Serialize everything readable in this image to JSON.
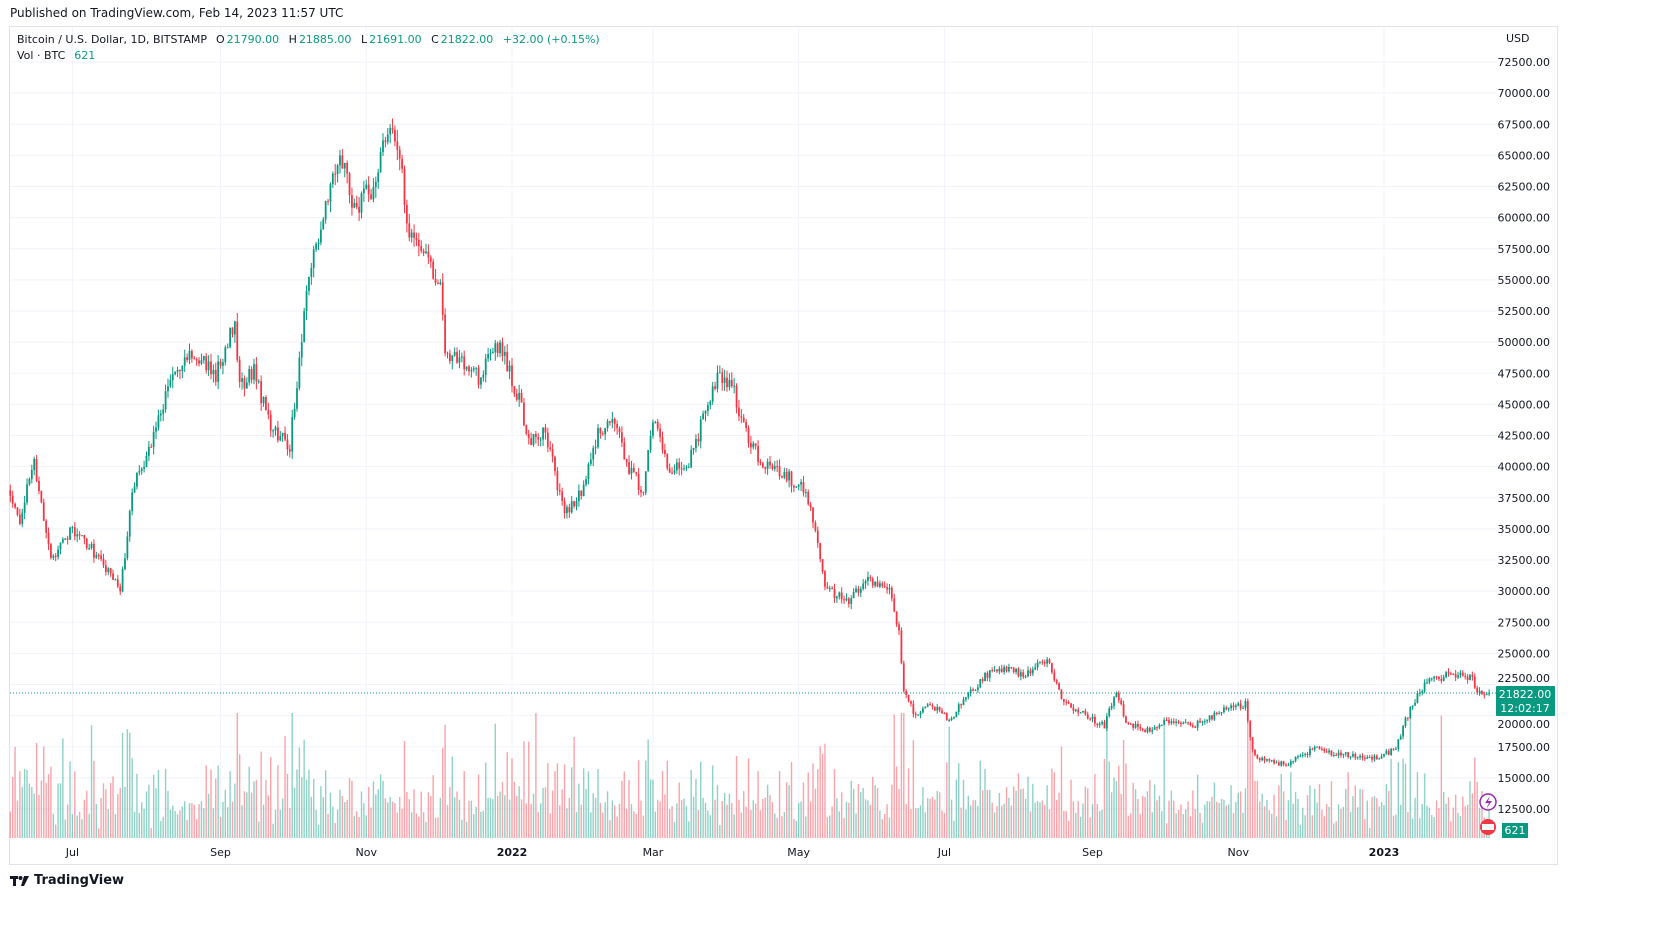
{
  "published": "Published on TradingView.com, Feb 14, 2023 11:57 UTC",
  "legend": {
    "symbol": "Bitcoin / U.S. Dollar, 1D, BITSTAMP",
    "o_label": "O",
    "o": "21790.00",
    "h_label": "H",
    "h": "21885.00",
    "l_label": "L",
    "l": "21691.00",
    "c_label": "C",
    "c": "21822.00",
    "change": "+32.00 (+0.15%)",
    "vol_label": "Vol · BTC",
    "vol": "621"
  },
  "footer": {
    "brand": "TradingView",
    "logo_icon": "tradingview-logo-icon"
  },
  "colors": {
    "up": "#089981",
    "down": "#f23645",
    "grid": "#f0f3fa",
    "last": "#089981"
  },
  "chart_data": {
    "type": "candlestick",
    "title": "Bitcoin / U.S. Dollar, 1D, BITSTAMP",
    "currency": "USD",
    "x_unit": "days since 2022-01-01",
    "xlim": [
      -210,
      409
    ],
    "ylim": [
      11000,
      74000
    ],
    "y_ticks": [
      12500,
      15000,
      17500,
      20000,
      22500,
      25000,
      27500,
      30000,
      32500,
      35000,
      37500,
      40000,
      42500,
      45000,
      47500,
      50000,
      52500,
      55000,
      57500,
      60000,
      62500,
      65000,
      67500,
      70000,
      72500
    ],
    "x_ticks": [
      {
        "t": -184,
        "label": "Jul"
      },
      {
        "t": -122,
        "label": "Sep"
      },
      {
        "t": -61,
        "label": "Nov"
      },
      {
        "t": 0,
        "label": "2022"
      },
      {
        "t": 59,
        "label": "Mar"
      },
      {
        "t": 120,
        "label": "May"
      },
      {
        "t": 181,
        "label": "Jul"
      },
      {
        "t": 243,
        "label": "Sep"
      },
      {
        "t": 304,
        "label": "Nov"
      },
      {
        "t": 365,
        "label": "2023"
      }
    ],
    "close_anchors": [
      [
        -210,
        38100
      ],
      [
        -206,
        35700
      ],
      [
        -200,
        40500
      ],
      [
        -193,
        32500
      ],
      [
        -185,
        34900
      ],
      [
        -177,
        33700
      ],
      [
        -164,
        30100
      ],
      [
        -158,
        38900
      ],
      [
        -152,
        41300
      ],
      [
        -143,
        47000
      ],
      [
        -133,
        49000
      ],
      [
        -124,
        47400
      ],
      [
        -116,
        51800
      ],
      [
        -114,
        46200
      ],
      [
        -108,
        47800
      ],
      [
        -101,
        43000
      ],
      [
        -93,
        41700
      ],
      [
        -89,
        48600
      ],
      [
        -85,
        55000
      ],
      [
        -78,
        61400
      ],
      [
        -72,
        65400
      ],
      [
        -66,
        60600
      ],
      [
        -58,
        62600
      ],
      [
        -52,
        67400
      ],
      [
        -47,
        64600
      ],
      [
        -43,
        59000
      ],
      [
        -36,
        57400
      ],
      [
        -30,
        54200
      ],
      [
        -28,
        49400
      ],
      [
        -22,
        48600
      ],
      [
        -13,
        47000
      ],
      [
        -7,
        50200
      ],
      [
        -3,
        48600
      ],
      [
        3,
        45400
      ],
      [
        7,
        42100
      ],
      [
        14,
        42900
      ],
      [
        22,
        36100
      ],
      [
        30,
        38100
      ],
      [
        36,
        42900
      ],
      [
        43,
        43700
      ],
      [
        49,
        39700
      ],
      [
        55,
        38100
      ],
      [
        59,
        43700
      ],
      [
        66,
        39700
      ],
      [
        74,
        40500
      ],
      [
        80,
        43700
      ],
      [
        87,
        47400
      ],
      [
        93,
        46200
      ],
      [
        97,
        43000
      ],
      [
        104,
        40500
      ],
      [
        112,
        39700
      ],
      [
        123,
        38100
      ],
      [
        127,
        34900
      ],
      [
        131,
        30100
      ],
      [
        141,
        29300
      ],
      [
        150,
        30900
      ],
      [
        158,
        30100
      ],
      [
        162,
        26900
      ],
      [
        164,
        22100
      ],
      [
        169,
        20000
      ],
      [
        175,
        20900
      ],
      [
        183,
        19600
      ],
      [
        189,
        21300
      ],
      [
        199,
        23300
      ],
      [
        207,
        23700
      ],
      [
        215,
        23300
      ],
      [
        224,
        24500
      ],
      [
        230,
        21300
      ],
      [
        240,
        20000
      ],
      [
        248,
        19200
      ],
      [
        253,
        22100
      ],
      [
        257,
        19600
      ],
      [
        265,
        18800
      ],
      [
        276,
        19600
      ],
      [
        286,
        19200
      ],
      [
        297,
        20400
      ],
      [
        307,
        20900
      ],
      [
        310,
        17300
      ],
      [
        313,
        16500
      ],
      [
        324,
        16100
      ],
      [
        336,
        17300
      ],
      [
        347,
        16900
      ],
      [
        359,
        16500
      ],
      [
        370,
        17300
      ],
      [
        374,
        19600
      ],
      [
        378,
        21300
      ],
      [
        383,
        22900
      ],
      [
        395,
        23300
      ],
      [
        402,
        22900
      ],
      [
        404,
        21700
      ],
      [
        409,
        21822
      ]
    ],
    "last_price": "21822.00",
    "countdown": "12:02:17",
    "last_volume": "621"
  }
}
